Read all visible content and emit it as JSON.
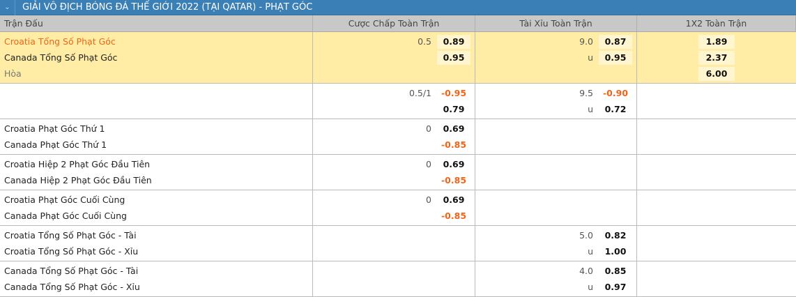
{
  "title": "GIẢI VÔ ĐỊCH BÓNG ĐÁ THẾ GIỚI 2022 (TẠI QATAR) - PHẠT GÓC",
  "columns": [
    "Trận Đấu",
    "Cược Chấp Toàn Trận",
    "Tài Xỉu Toàn Trận",
    "1X2 Toàn Trận"
  ],
  "colors": {
    "header_bar": "#3a7fb5",
    "highlight": "#ffeda6",
    "negative": "#f06418"
  },
  "groups": [
    {
      "highlight": true,
      "rows": [
        {
          "name": "Croatia Tổng Số Phạt Góc",
          "name_color": "red",
          "hdp_line": "0.5",
          "hdp_odds": "0.89",
          "ou_line": "9.0",
          "ou_odds": "0.87",
          "x12": "1.89"
        },
        {
          "name": "Canada Tổng Số Phạt Góc",
          "hdp_line": "",
          "hdp_odds": "0.95",
          "ou_line": "u",
          "ou_odds": "0.95",
          "x12": "2.37"
        },
        {
          "name": "Hòa",
          "name_color": "grey",
          "hdp_line": "",
          "hdp_odds": "",
          "ou_line": "",
          "ou_odds": "",
          "x12": "6.00"
        }
      ]
    },
    {
      "rows": [
        {
          "name": "",
          "hdp_line": "0.5/1",
          "hdp_odds": "-0.95",
          "ou_line": "9.5",
          "ou_odds": "-0.90",
          "x12": ""
        },
        {
          "name": "",
          "hdp_line": "",
          "hdp_odds": "0.79",
          "ou_line": "u",
          "ou_odds": "0.72",
          "x12": ""
        }
      ]
    },
    {
      "rows": [
        {
          "name": "Croatia Phạt Góc Thứ 1",
          "hdp_line": "0",
          "hdp_odds": "0.69",
          "ou_line": "",
          "ou_odds": "",
          "x12": ""
        },
        {
          "name": "Canada Phạt Góc Thứ 1",
          "hdp_line": "",
          "hdp_odds": "-0.85",
          "ou_line": "",
          "ou_odds": "",
          "x12": ""
        }
      ]
    },
    {
      "rows": [
        {
          "name": "Croatia Hiệp 2 Phạt Góc Đầu Tiên",
          "hdp_line": "0",
          "hdp_odds": "0.69",
          "ou_line": "",
          "ou_odds": "",
          "x12": ""
        },
        {
          "name": "Canada Hiệp 2 Phạt Góc Đầu Tiên",
          "hdp_line": "",
          "hdp_odds": "-0.85",
          "ou_line": "",
          "ou_odds": "",
          "x12": ""
        }
      ]
    },
    {
      "rows": [
        {
          "name": "Croatia Phạt Góc Cuối Cùng",
          "hdp_line": "0",
          "hdp_odds": "0.69",
          "ou_line": "",
          "ou_odds": "",
          "x12": ""
        },
        {
          "name": "Canada Phạt Góc Cuối Cùng",
          "hdp_line": "",
          "hdp_odds": "-0.85",
          "ou_line": "",
          "ou_odds": "",
          "x12": ""
        }
      ]
    },
    {
      "rows": [
        {
          "name": "Croatia Tổng Số Phạt Góc - Tài",
          "hdp_line": "",
          "hdp_odds": "",
          "ou_line": "5.0",
          "ou_odds": "0.82",
          "x12": ""
        },
        {
          "name": "Croatia Tổng Số Phạt Góc - Xỉu",
          "hdp_line": "",
          "hdp_odds": "",
          "ou_line": "u",
          "ou_odds": "1.00",
          "x12": ""
        }
      ]
    },
    {
      "rows": [
        {
          "name": "Canada Tổng Số Phạt Góc - Tài",
          "hdp_line": "",
          "hdp_odds": "",
          "ou_line": "4.0",
          "ou_odds": "0.85",
          "x12": ""
        },
        {
          "name": "Canada Tổng Số Phạt Góc - Xỉu",
          "hdp_line": "",
          "hdp_odds": "",
          "ou_line": "u",
          "ou_odds": "0.97",
          "x12": ""
        }
      ]
    }
  ]
}
